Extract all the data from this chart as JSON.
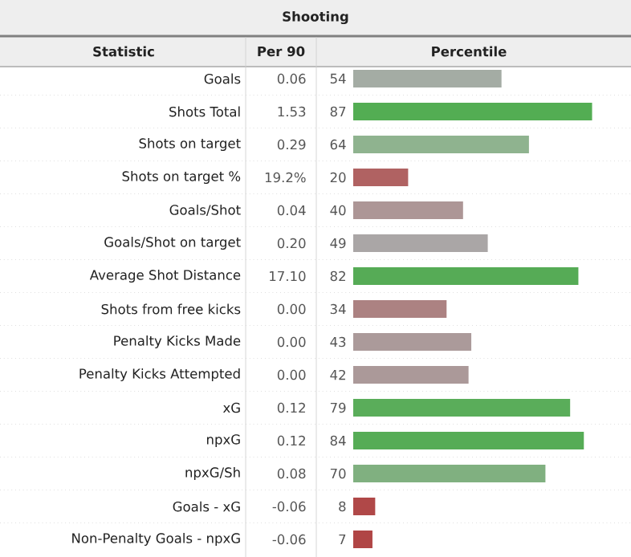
{
  "chart_data": {
    "type": "bar",
    "orientation": "horizontal",
    "title": "Shooting",
    "ylabel": "Statistic",
    "xlabel": "Percentile",
    "categories": [
      "Goals",
      "Shots Total",
      "Shots on target",
      "Shots on target %",
      "Goals/Shot",
      "Goals/Shot on target",
      "Average Shot Distance",
      "Shots from free kicks",
      "Penalty Kicks Made",
      "Penalty Kicks Attempted",
      "xG",
      "npxG",
      "npxG/Sh",
      "Goals - xG",
      "Non-Penalty Goals - npxG"
    ],
    "values": [
      54,
      87,
      64,
      20,
      40,
      49,
      82,
      34,
      43,
      42,
      79,
      84,
      70,
      8,
      7
    ],
    "colors": [
      "#a4aca4",
      "#53ad53",
      "#8fb38f",
      "#b06262",
      "#ad9696",
      "#aaa6a6",
      "#56ab56",
      "#ac8282",
      "#ab9a9a",
      "#ab9999",
      "#5aad5a",
      "#56ac56",
      "#80b080",
      "#b04848",
      "#b04545"
    ],
    "xlim": [
      0,
      100
    ],
    "data_labels": true,
    "tick_labels": "y",
    "grid": "y",
    "annotations": [
      "Per 90",
      "0.06",
      "1.53",
      "0.29",
      "19.2%",
      "0.04",
      "0.20",
      "17.10",
      "0.00",
      "0.00",
      "0.00",
      "0.12",
      "0.12",
      "0.08",
      "-0.06",
      "-0.06"
    ]
  }
}
